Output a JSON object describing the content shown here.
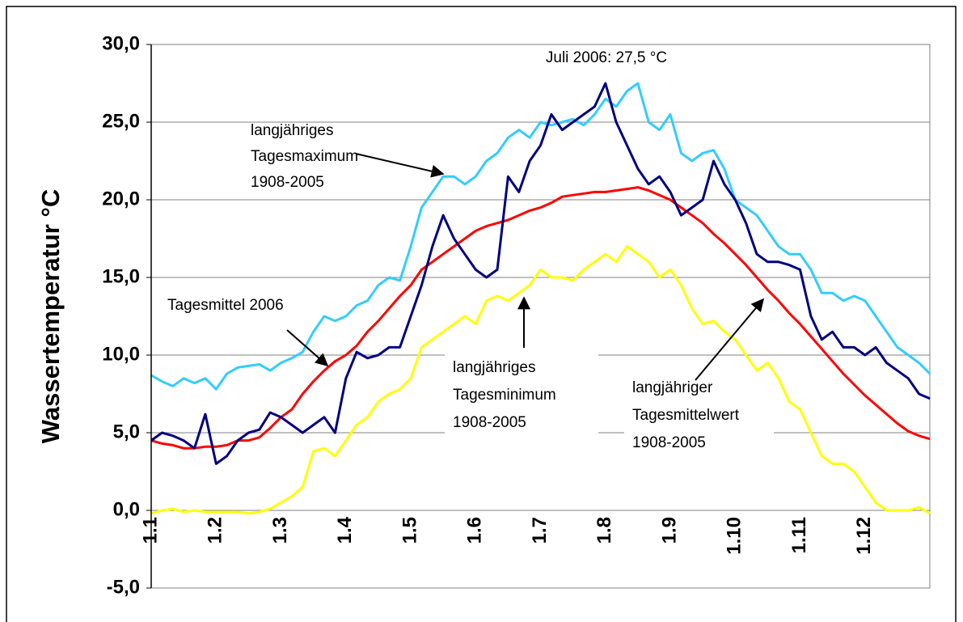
{
  "chart_data": {
    "type": "line",
    "y_label": "Wassertemperatur °C",
    "categories": [
      "1.1",
      null,
      null,
      null,
      null,
      null,
      "1.2",
      null,
      null,
      null,
      null,
      null,
      "1.3",
      null,
      null,
      null,
      null,
      null,
      "1.4",
      null,
      null,
      null,
      null,
      null,
      "1.5",
      null,
      null,
      null,
      null,
      null,
      "1.6",
      null,
      null,
      null,
      null,
      null,
      "1.7",
      null,
      null,
      null,
      null,
      null,
      "1.8",
      null,
      null,
      null,
      null,
      null,
      "1.9",
      null,
      null,
      null,
      null,
      null,
      "1.10",
      null,
      null,
      null,
      null,
      null,
      "1.11",
      null,
      null,
      null,
      null,
      null,
      "1.12",
      null,
      null,
      null,
      null,
      null,
      null
    ],
    "ylim": [
      -5,
      30
    ],
    "yticks": [
      {
        "value": -5,
        "label": "-5,0"
      },
      {
        "value": 0,
        "label": "0,0"
      },
      {
        "value": 5,
        "label": "5,0"
      },
      {
        "value": 10,
        "label": "10,0"
      },
      {
        "value": 15,
        "label": "15,0"
      },
      {
        "value": 20,
        "label": "20,0"
      },
      {
        "value": 25,
        "label": "25,0"
      },
      {
        "value": 30,
        "label": "30,0"
      }
    ],
    "grid": true,
    "series": [
      {
        "color": "#33ccff",
        "values": [
          8.7,
          8.3,
          8.0,
          8.5,
          8.2,
          8.5,
          7.8,
          8.8,
          9.2,
          9.3,
          9.4,
          9.0,
          9.5,
          9.8,
          10.2,
          11.5,
          12.5,
          12.2,
          12.5,
          13.2,
          13.5,
          14.5,
          15.0,
          14.8,
          17.0,
          19.5,
          20.5,
          21.5,
          21.5,
          21.0,
          21.5,
          22.5,
          23.0,
          24.0,
          24.5,
          24.0,
          25.0,
          24.8,
          25.0,
          25.2,
          24.8,
          25.5,
          26.5,
          26.0,
          27.0,
          27.5,
          25.0,
          24.5,
          25.5,
          23.0,
          22.5,
          23.0,
          23.2,
          22.0,
          20.0,
          19.5,
          19.0,
          18.0,
          17.0,
          16.5,
          16.5,
          15.5,
          14.0,
          14.0,
          13.5,
          13.8,
          13.5,
          12.5,
          11.5,
          10.5,
          10.0,
          9.5,
          8.8
        ]
      },
      {
        "color": "#ffff00",
        "values": [
          -0.2,
          0.0,
          0.1,
          -0.1,
          0.0,
          -0.1,
          -0.1,
          -0.1,
          -0.1,
          -0.2,
          -0.1,
          0.1,
          0.5,
          0.9,
          1.5,
          3.8,
          4.0,
          3.5,
          4.5,
          5.5,
          6.0,
          7.0,
          7.5,
          7.8,
          8.5,
          10.5,
          11.0,
          11.5,
          12.0,
          12.5,
          12.0,
          13.5,
          13.8,
          13.5,
          14.0,
          14.5,
          15.5,
          15.0,
          15.0,
          14.8,
          15.5,
          16.0,
          16.5,
          16.0,
          17.0,
          16.5,
          16.0,
          15.0,
          15.5,
          14.5,
          13.0,
          12.0,
          12.2,
          11.5,
          11.0,
          10.0,
          9.0,
          9.5,
          8.5,
          7.0,
          6.5,
          5.0,
          3.5,
          3.0,
          3.0,
          2.5,
          1.5,
          0.5,
          0.0,
          0.0,
          0.0,
          0.2,
          -0.2
        ]
      },
      {
        "color": "#ff0000",
        "values": [
          4.5,
          4.3,
          4.2,
          4.0,
          4.0,
          4.1,
          4.1,
          4.2,
          4.5,
          4.5,
          4.7,
          5.3,
          6.0,
          6.5,
          7.5,
          8.3,
          9.0,
          9.6,
          10.0,
          10.6,
          11.5,
          12.2,
          13.0,
          13.8,
          14.5,
          15.5,
          16.0,
          16.5,
          17.0,
          17.5,
          18.0,
          18.3,
          18.5,
          18.7,
          19.0,
          19.3,
          19.5,
          19.8,
          20.2,
          20.3,
          20.4,
          20.5,
          20.5,
          20.6,
          20.7,
          20.8,
          20.6,
          20.3,
          20.0,
          19.5,
          19.0,
          18.5,
          17.8,
          17.2,
          16.5,
          15.8,
          15.0,
          14.2,
          13.5,
          12.7,
          12.0,
          11.2,
          10.4,
          9.6,
          8.8,
          8.1,
          7.4,
          6.8,
          6.2,
          5.6,
          5.1,
          4.8,
          4.6
        ]
      },
      {
        "color": "#000080",
        "values": [
          4.5,
          5.0,
          4.8,
          4.5,
          4.0,
          6.2,
          3.0,
          3.5,
          4.5,
          5.0,
          5.2,
          6.3,
          6.0,
          5.5,
          5.0,
          5.5,
          6.0,
          5.0,
          8.5,
          10.2,
          9.8,
          10.0,
          10.5,
          10.5,
          12.5,
          14.5,
          17.0,
          19.0,
          17.5,
          16.5,
          15.5,
          15.0,
          15.5,
          21.5,
          20.5,
          22.5,
          23.5,
          25.5,
          24.5,
          25.0,
          25.5,
          26.0,
          27.5,
          25.0,
          23.5,
          22.0,
          21.0,
          21.5,
          20.5,
          19.0,
          19.5,
          20.0,
          22.5,
          21.0,
          20.0,
          18.5,
          16.5,
          16.0,
          16.0,
          15.8,
          15.5,
          12.5,
          11.0,
          11.5,
          10.5,
          10.5,
          10.0,
          10.5,
          9.5,
          9.0,
          8.5,
          7.5,
          7.2
        ]
      }
    ],
    "annotations": [
      {
        "lines": [
          "Juli 2006: 27,5 °C"
        ]
      },
      {
        "lines": [
          "langjähriges",
          "Tagesmaximum",
          "1908-2005"
        ]
      },
      {
        "lines": [
          "Tagesmittel 2006"
        ]
      },
      {
        "lines": [
          "langjähriges",
          "Tagesminimum",
          "1908-2005"
        ]
      },
      {
        "lines": [
          "langjähriger",
          "Tagesmittelwert",
          "1908-2005"
        ]
      }
    ]
  }
}
